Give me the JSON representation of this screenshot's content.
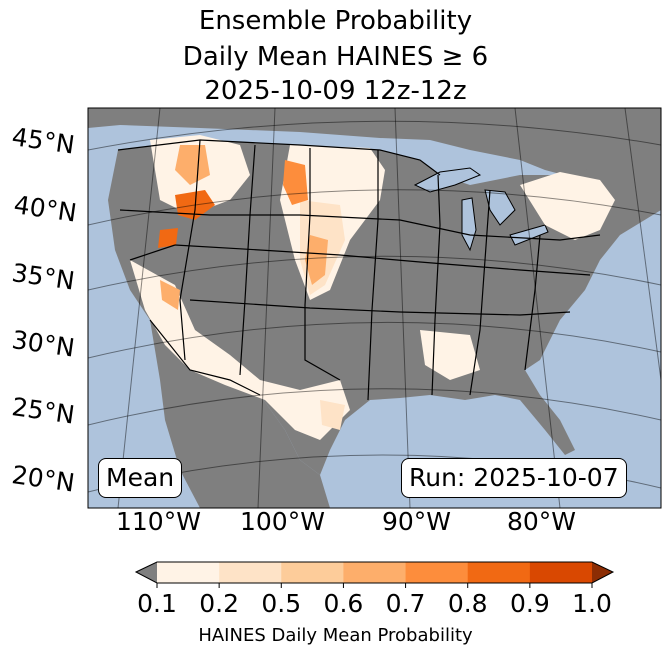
{
  "title": {
    "line1": "Ensemble Probability",
    "line2": "Daily Mean HAINES ≥ 6",
    "line3": "2025-10-09 12z-12z"
  },
  "map": {
    "lat_labels": [
      "45°N",
      "40°N",
      "35°N",
      "30°N",
      "25°N",
      "20°N"
    ],
    "lon_labels": [
      "110°W",
      "100°W",
      "90°W",
      "80°W"
    ],
    "mean_label": "Mean",
    "run_label": "Run: 2025-10-07",
    "ocean_color": "#aec3dc",
    "nodata_color": "#7f7f7f"
  },
  "colorbar": {
    "ticks": [
      "0.1",
      "0.2",
      "0.5",
      "0.6",
      "0.7",
      "0.8",
      "0.9",
      "1.0"
    ],
    "colors": [
      "#fff3e6",
      "#fee3c7",
      "#fdcc9a",
      "#fdae6b",
      "#fd8d3c",
      "#f16913",
      "#d94801"
    ],
    "under_color": "#7f7f7f",
    "over_color": "#8c2d04",
    "label": "HAINES Daily Mean Probability"
  }
}
